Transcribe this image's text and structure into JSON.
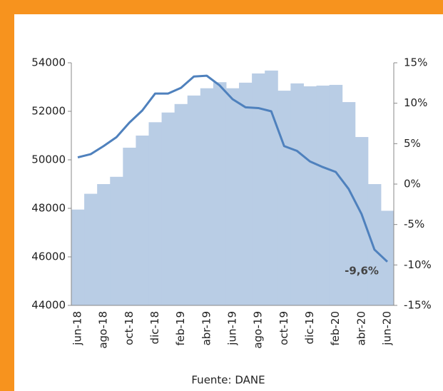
{
  "chart_data": {
    "type": "bar-line",
    "categories": [
      "jun-18",
      null,
      "ago-18",
      null,
      "oct-18",
      null,
      "dic-18",
      null,
      "feb-19",
      null,
      "abr-19",
      null,
      "jun-19",
      null,
      "ago-19",
      null,
      "oct-19",
      null,
      "dic-19",
      null,
      "feb-20",
      null,
      "abr-20",
      null,
      "jun-20"
    ],
    "series": [
      {
        "type": "bar",
        "color": "#b9cde5",
        "values": [
          47950,
          48600,
          49000,
          49300,
          50500,
          51000,
          51550,
          51950,
          52300,
          52650,
          52950,
          53200,
          52950,
          53180,
          53560,
          53680,
          52850,
          53150,
          53030,
          53060,
          53090,
          52380,
          50940,
          49000,
          47900
        ]
      },
      {
        "type": "line",
        "axis": "y2",
        "color": "#4f81bd",
        "values": [
          3.3,
          3.7,
          4.7,
          5.8,
          7.6,
          9.1,
          11.2,
          11.2,
          11.9,
          13.3,
          13.4,
          12.2,
          10.5,
          9.5,
          9.4,
          9.0,
          4.7,
          4.1,
          2.8,
          2.1,
          1.5,
          -0.6,
          -3.7,
          -8.1,
          -9.6
        ],
        "value_labels": [
          null,
          null,
          null,
          null,
          null,
          null,
          null,
          null,
          null,
          null,
          null,
          null,
          null,
          null,
          null,
          null,
          null,
          null,
          null,
          null,
          null,
          null,
          null,
          null,
          "-9,6%"
        ]
      }
    ],
    "ylim": [
      44000,
      54000
    ],
    "yticks": [
      44000,
      46000,
      48000,
      50000,
      52000,
      54000
    ],
    "y2lim": [
      -15,
      15
    ],
    "y2ticks": [
      {
        "value": -15,
        "label": "-15%"
      },
      {
        "value": -10,
        "label": "-10%"
      },
      {
        "value": -5,
        "label": "-5%"
      },
      {
        "value": 0,
        "label": "0%"
      },
      {
        "value": 5,
        "label": "5%"
      },
      {
        "value": 10,
        "label": "10%"
      },
      {
        "value": 15,
        "label": "15%"
      }
    ],
    "source": "Fuente: DANE"
  }
}
